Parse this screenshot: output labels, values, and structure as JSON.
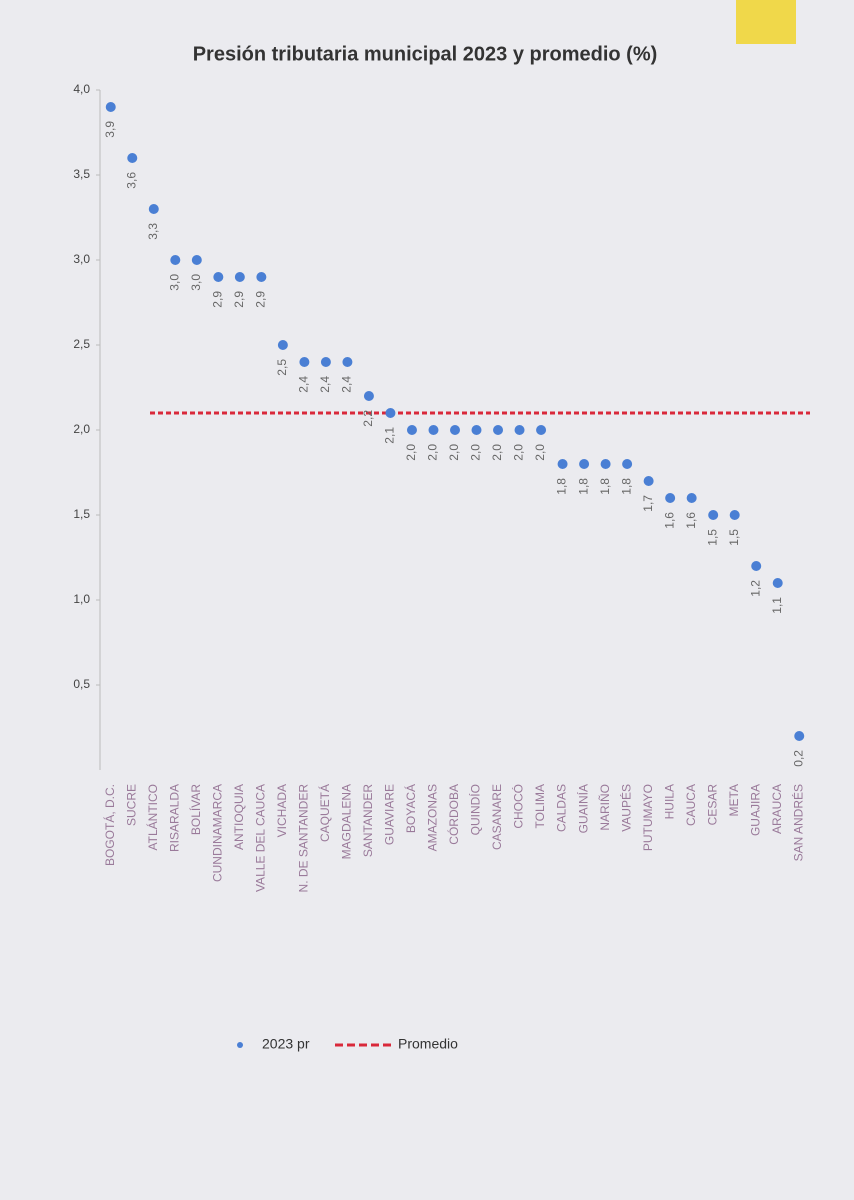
{
  "chart_data": {
    "type": "dot",
    "title": "Presión tributaria municipal 2023 y promedio (%)",
    "categories": [
      "BOGOTÁ, D.C.",
      "SUCRE",
      "ATLÁNTICO",
      "RISARALDA",
      "BOLÍVAR",
      "CUNDINAMARCA",
      "ANTIOQUIA",
      "VALLE DEL CAUCA",
      "VICHADA",
      "N. DE SANTANDER",
      "CAQUETÁ",
      "MAGDALENA",
      "SANTANDER",
      "GUAVIARE",
      "BOYACÁ",
      "AMAZONAS",
      "CÓRDOBA",
      "QUINDÍO",
      "CASANARE",
      "CHOCÓ",
      "TOLIMA",
      "CALDAS",
      "GUAINÍA",
      "NARIÑO",
      "VAUPÉS",
      "PUTUMAYO",
      "HUILA",
      "CAUCA",
      "CESAR",
      "META",
      "GUAJIRA",
      "ARAUCA",
      "SAN ANDRÉS"
    ],
    "series": [
      {
        "name": "2023 pr",
        "color": "#4a7fd4",
        "values": [
          3.9,
          3.6,
          3.3,
          3.0,
          3.0,
          2.9,
          2.9,
          2.9,
          2.5,
          2.4,
          2.4,
          2.4,
          2.2,
          2.1,
          2.0,
          2.0,
          2.0,
          2.0,
          2.0,
          2.0,
          2.0,
          1.8,
          1.8,
          1.8,
          1.8,
          1.7,
          1.6,
          1.6,
          1.5,
          1.5,
          1.2,
          1.1,
          0.2
        ],
        "value_labels": [
          "3,9",
          "3,6",
          "3,3",
          "3,0",
          "3,0",
          "2,9",
          "2,9",
          "2,9",
          "2,5",
          "2,4",
          "2,4",
          "2,4",
          "2,2",
          "2,1",
          "2,0",
          "2,0",
          "2,0",
          "2,0",
          "2,0",
          "2,0",
          "2,0",
          "1,8",
          "1,8",
          "1,8",
          "1,8",
          "1,7",
          "1,6",
          "1,6",
          "1,5",
          "1,5",
          "1,2",
          "1,1",
          "0,2"
        ]
      }
    ],
    "average": {
      "name": "Promedio",
      "value": 2.1,
      "color": "#d9283a"
    },
    "ylim": [
      0,
      4.0
    ],
    "yticks": [
      {
        "value": 0.5,
        "label": "0,5"
      },
      {
        "value": 1.0,
        "label": "1,0"
      },
      {
        "value": 1.5,
        "label": "1,5"
      },
      {
        "value": 2.0,
        "label": "2,0"
      },
      {
        "value": 2.5,
        "label": "2,5"
      },
      {
        "value": 3.0,
        "label": "3,0"
      },
      {
        "value": 3.5,
        "label": "3,5"
      },
      {
        "value": 4.0,
        "label": "4,0"
      }
    ],
    "grid": false,
    "legend": "bottom"
  }
}
